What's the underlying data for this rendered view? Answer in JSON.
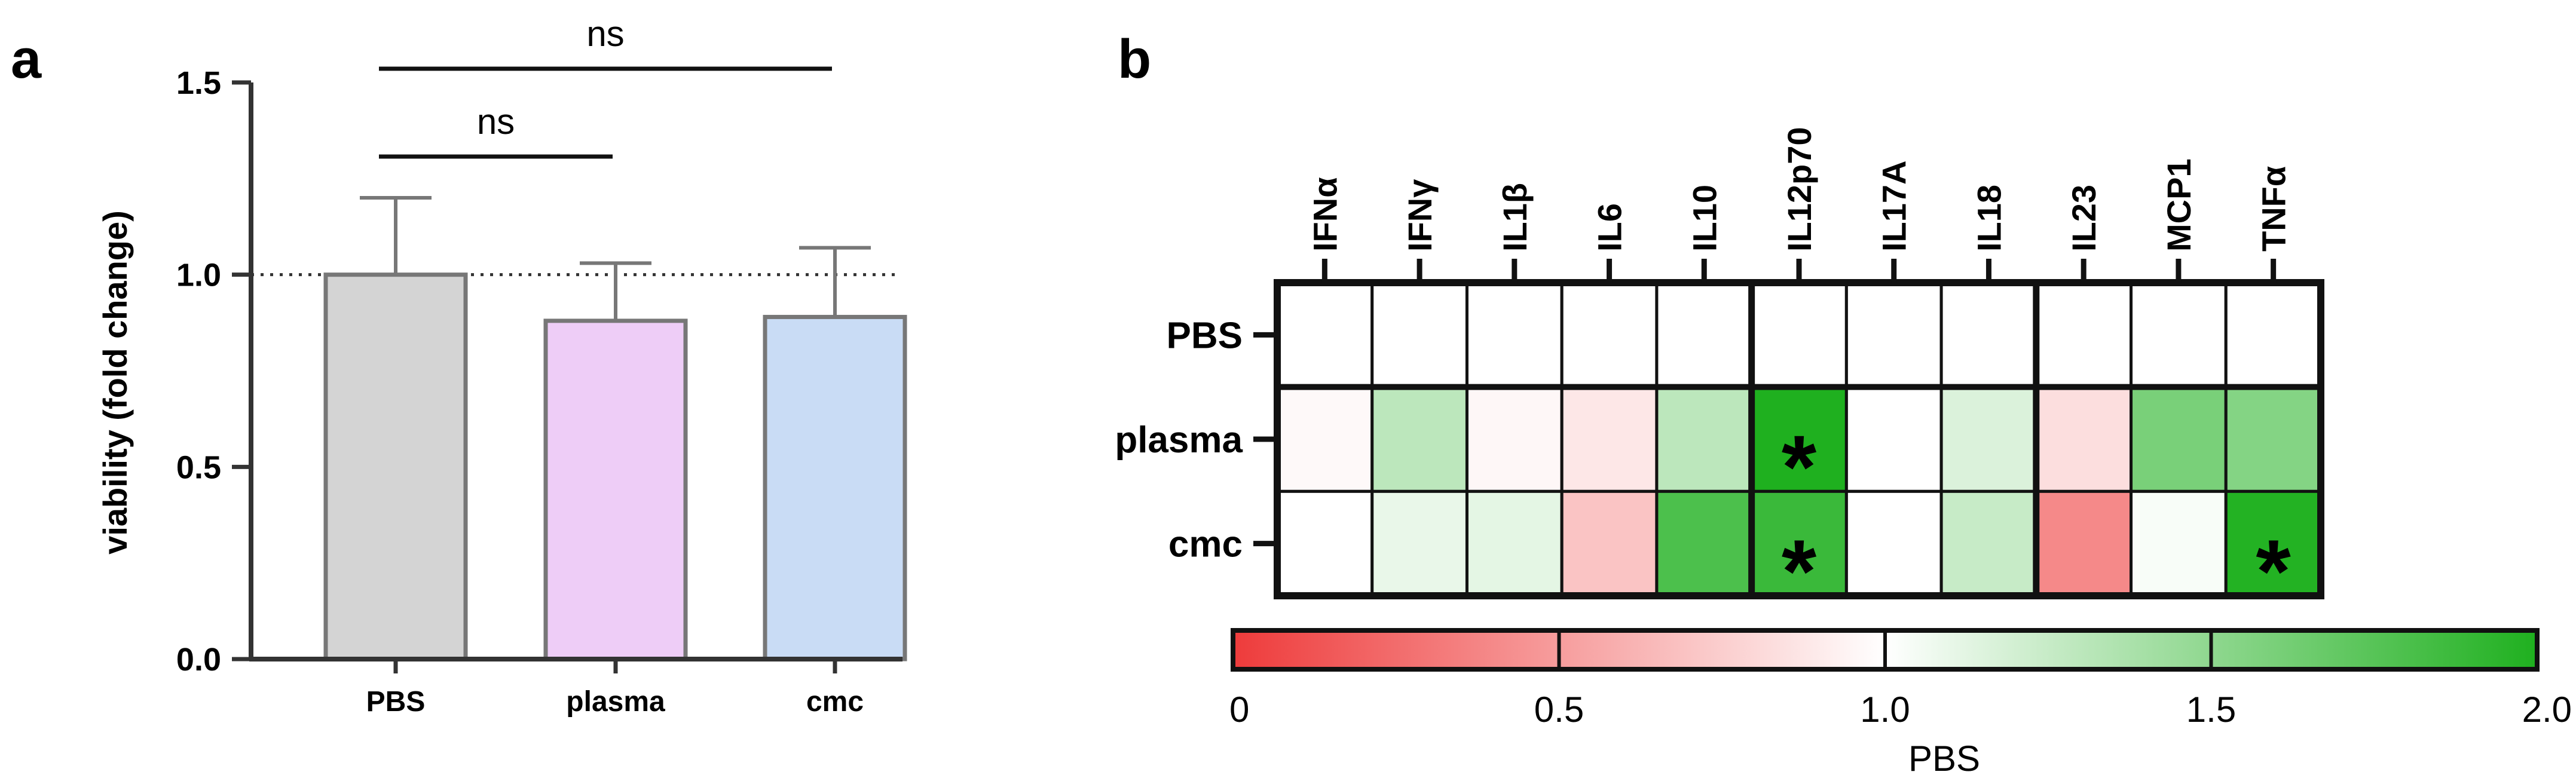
{
  "chart_data": [
    {
      "panel": "a",
      "type": "bar",
      "categories": [
        "PBS",
        "plasma",
        "cmc"
      ],
      "values": [
        1.0,
        0.88,
        0.89
      ],
      "errors": [
        0.2,
        0.15,
        0.18
      ],
      "colors": [
        "#d4d4d4",
        "#eecdf7",
        "#c9dcf5"
      ],
      "ylabel": "viability (fold change)",
      "ylim": [
        0,
        1.5
      ],
      "yticks": [
        0.0,
        0.5,
        1.0,
        1.5
      ],
      "ytick_labels": [
        "0.0",
        "0.5",
        "1.0",
        "1.5"
      ],
      "reference_line": 1.0,
      "comparisons": [
        {
          "from": "PBS",
          "to": "plasma",
          "label": "ns"
        },
        {
          "from": "PBS",
          "to": "cmc",
          "label": "ns"
        }
      ]
    },
    {
      "panel": "b",
      "type": "heatmap",
      "columns": [
        "IFNα",
        "IFNγ",
        "IL1β",
        "IL6",
        "IL10",
        "IL12p70",
        "IL17A",
        "IL18",
        "IL23",
        "MCP1",
        "TNFα"
      ],
      "rows": [
        "PBS",
        "plasma",
        "cmc"
      ],
      "values": [
        [
          1.0,
          1.0,
          1.0,
          1.0,
          1.0,
          1.0,
          1.0,
          1.0,
          1.0,
          1.0,
          1.0
        ],
        [
          0.97,
          1.3,
          0.96,
          0.88,
          1.3,
          2.0,
          1.0,
          1.16,
          0.83,
          1.6,
          1.55
        ],
        [
          1.0,
          1.1,
          1.12,
          0.7,
          1.8,
          1.88,
          1.0,
          1.25,
          0.4,
          1.03,
          1.98
        ]
      ],
      "significant": [
        {
          "row": 1,
          "col": 5,
          "mark": "*"
        },
        {
          "row": 2,
          "col": 5,
          "mark": "*"
        },
        {
          "row": 2,
          "col": 10,
          "mark": "*"
        }
      ],
      "colorbar": {
        "min": 0,
        "max": 2.0,
        "ticks": [
          0,
          0.5,
          1.0,
          1.5,
          2.0
        ],
        "tick_labels": [
          "0",
          "0.5",
          "1.0",
          "1.5",
          "2.0"
        ],
        "low_color": "#ee3b3b",
        "mid_color": "#ffffff",
        "high_color": "#1fb01f",
        "title": "PBS"
      }
    }
  ]
}
